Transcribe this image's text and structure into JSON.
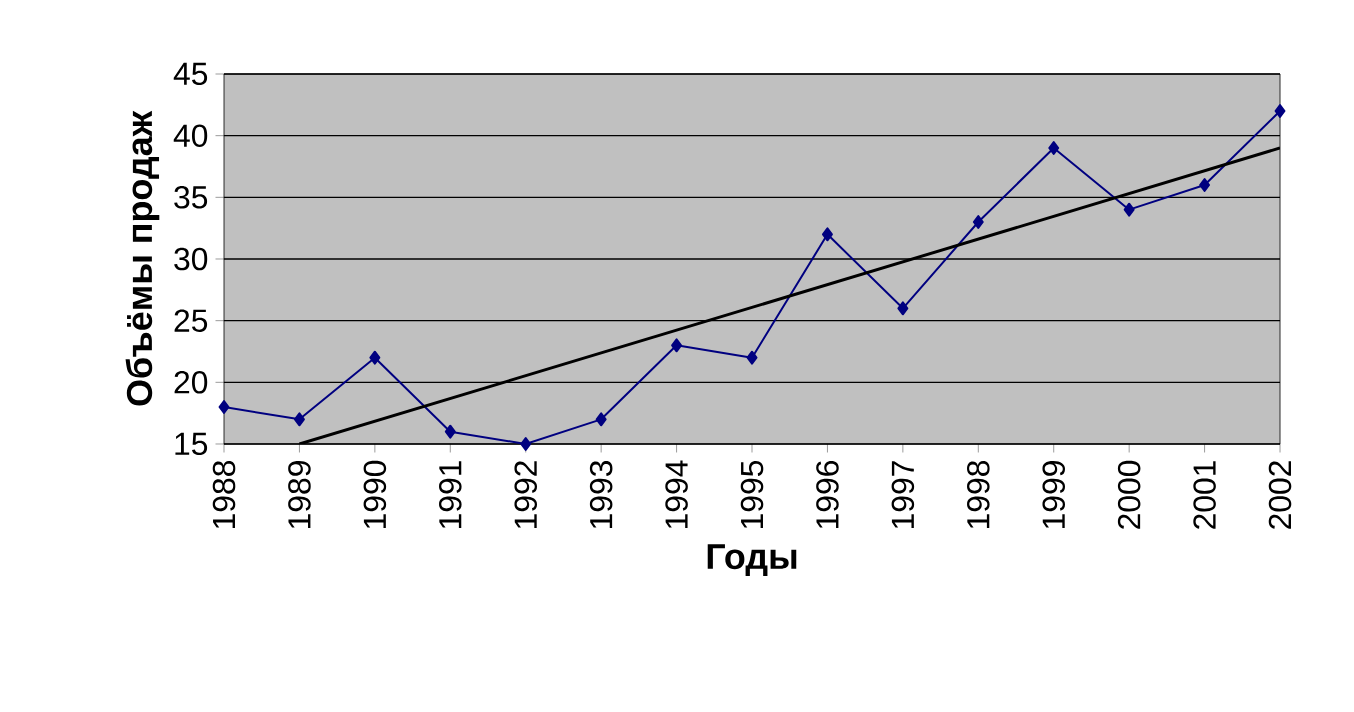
{
  "chart_data": {
    "type": "line",
    "xlabel": "Годы",
    "ylabel": "Объёмы продаж",
    "x": [
      1988,
      1989,
      1990,
      1991,
      1992,
      1993,
      1994,
      1995,
      1996,
      1997,
      1998,
      1999,
      2000,
      2001,
      2002
    ],
    "series": [
      {
        "color": "#000080",
        "marker": "diamond",
        "values": [
          18,
          17,
          22,
          16,
          15,
          17,
          23,
          22,
          32,
          26,
          33,
          39,
          34,
          36,
          42
        ]
      },
      {
        "type": "line",
        "color": "#000000",
        "marker": "none",
        "x": [
          1989,
          2002
        ],
        "values": [
          15,
          39
        ]
      }
    ],
    "xlim": [
      1988,
      2002
    ],
    "xticks": [
      1988,
      1989,
      1990,
      1991,
      1992,
      1993,
      1994,
      1995,
      1996,
      1997,
      1998,
      1999,
      2000,
      2001,
      2002
    ],
    "ylim": [
      15,
      45
    ],
    "yticks": [
      15,
      20,
      25,
      30,
      35,
      40,
      45
    ],
    "grid": "y"
  }
}
